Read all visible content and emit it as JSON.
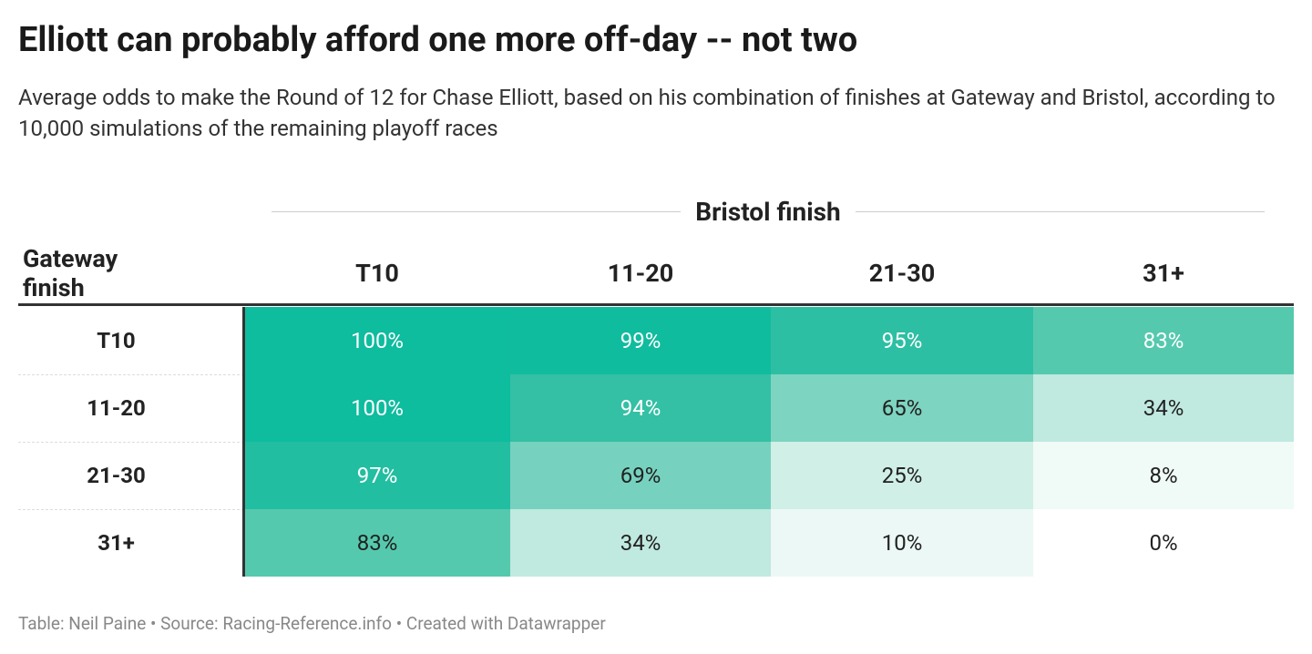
{
  "header": {
    "title": "Elliott can probably afford one more off-day -- not two",
    "subtitle": "Average odds to make the Round of 12 for Chase Elliott, based on his combination of finishes at Gateway and Bristol, according to 10,000 simulations of the remaining playoff races"
  },
  "table": {
    "group_header": "Bristol finish",
    "row_header": "Gateway finish",
    "columns": [
      "T10",
      "11-20",
      "21-30",
      "31+"
    ],
    "rows": [
      {
        "label": "T10",
        "cells": [
          {
            "text": "100%",
            "color": "#0ebc9e",
            "text_color": "#ffffff"
          },
          {
            "text": "99%",
            "color": "#10bc9e",
            "text_color": "#ffffff"
          },
          {
            "text": "95%",
            "color": "#2dbfa3",
            "text_color": "#ffffff"
          },
          {
            "text": "83%",
            "color": "#55c9ae",
            "text_color": "#ffffff"
          }
        ]
      },
      {
        "label": "11-20",
        "cells": [
          {
            "text": "100%",
            "color": "#0ebc9e",
            "text_color": "#ffffff"
          },
          {
            "text": "94%",
            "color": "#33c0a4",
            "text_color": "#ffffff"
          },
          {
            "text": "65%",
            "color": "#7dd4c0",
            "text_color": "#222222"
          },
          {
            "text": "34%",
            "color": "#c0e9df",
            "text_color": "#222222"
          }
        ]
      },
      {
        "label": "21-30",
        "cells": [
          {
            "text": "97%",
            "color": "#22bea1",
            "text_color": "#ffffff"
          },
          {
            "text": "69%",
            "color": "#76d2be",
            "text_color": "#222222"
          },
          {
            "text": "25%",
            "color": "#d0efe7",
            "text_color": "#222222"
          },
          {
            "text": "8%",
            "color": "#f0faf7",
            "text_color": "#222222"
          }
        ]
      },
      {
        "label": "31+",
        "cells": [
          {
            "text": "83%",
            "color": "#55c9ae",
            "text_color": "#222222"
          },
          {
            "text": "34%",
            "color": "#c0e9df",
            "text_color": "#222222"
          },
          {
            "text": "10%",
            "color": "#ecf8f5",
            "text_color": "#222222"
          },
          {
            "text": "0%",
            "color": "#ffffff",
            "text_color": "#222222"
          }
        ]
      }
    ]
  },
  "footer": "Table: Neil Paine • Source: Racing-Reference.info • Created with Datawrapper"
}
